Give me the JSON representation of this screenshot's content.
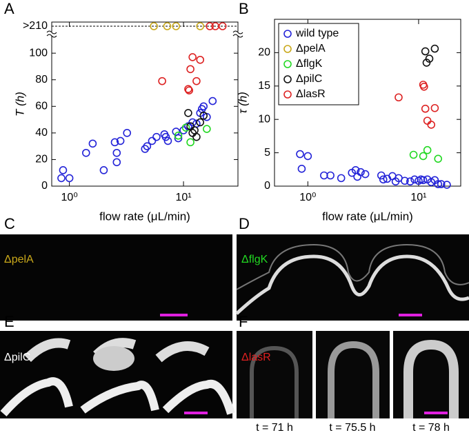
{
  "chart_data": [
    {
      "type": "scatter",
      "panel": "A",
      "xscale": "log",
      "xlabel": "flow rate (μL/min)",
      "ylabel": "T (h)",
      "xlim": [
        0.7,
        30
      ],
      "xticks": [
        {
          "value": 1,
          "label": "10⁰"
        },
        {
          "value": 10,
          "label": "10¹"
        }
      ],
      "ylim": [
        0,
        215
      ],
      "axis_break": [
        112,
        205
      ],
      "yticks": [
        0,
        20,
        40,
        60,
        80,
        100,
        {
          "value": 210,
          "label": ">210"
        }
      ],
      "series": [
        {
          "color": "#2323d8",
          "x": [
            0.85,
            0.88,
            1.0,
            1.4,
            1.6,
            2.0,
            2.5,
            2.6,
            2.6,
            2.8,
            3.2,
            4.6,
            4.8,
            5.3,
            5.8,
            6.8,
            7.0,
            7.3,
            8.6,
            9.0,
            10,
            11,
            12,
            13,
            14,
            14.5,
            16,
            18,
            15
          ],
          "values": [
            6,
            12,
            6,
            25,
            32,
            12,
            33,
            18,
            25,
            34,
            40,
            28,
            30,
            34,
            37,
            39,
            37,
            34,
            41,
            36,
            42,
            45,
            48,
            47,
            55,
            58,
            52,
            64,
            60
          ]
        },
        {
          "color": "#c9a81a",
          "x": [
            5.5,
            7.2,
            8.6,
            14
          ],
          "values": [
            210,
            210,
            210,
            210
          ]
        },
        {
          "color": "#22d822",
          "x": [
            9,
            10.5,
            11.5,
            16
          ],
          "values": [
            38,
            44,
            33,
            43
          ]
        },
        {
          "color": "#111111",
          "x": [
            11,
            11.5,
            12,
            12.5,
            13,
            14,
            15
          ],
          "values": [
            55,
            45,
            40,
            42,
            37,
            48,
            53
          ]
        },
        {
          "color": "#dd2222",
          "x": [
            6.5,
            11,
            11.2,
            11.5,
            12,
            13,
            14,
            17,
            19,
            22
          ],
          "values": [
            79,
            73,
            72,
            88,
            97,
            79,
            95,
            210,
            210,
            210
          ]
        }
      ]
    },
    {
      "type": "scatter",
      "panel": "B",
      "xscale": "log",
      "xlabel": "flow rate (μL/min)",
      "ylabel": "τ (h)",
      "xlim": [
        0.5,
        24
      ],
      "xticks": [
        {
          "value": 1,
          "label": "10⁰"
        },
        {
          "value": 10,
          "label": "10¹"
        }
      ],
      "ylim": [
        0,
        25
      ],
      "yticks": [
        0,
        5,
        10,
        15,
        20
      ],
      "legend": "upper left",
      "series": [
        {
          "name": "wild type",
          "color": "#2323d8",
          "x": [
            0.85,
            0.88,
            1.0,
            1.4,
            1.6,
            2.0,
            2.5,
            2.7,
            2.8,
            3.0,
            3.3,
            4.6,
            4.8,
            5.2,
            5.8,
            6.2,
            6.6,
            7.5,
            8.4,
            9.2,
            10,
            10.5,
            11,
            12,
            13,
            14,
            15,
            16,
            18
          ],
          "values": [
            4.8,
            2.6,
            4.5,
            1.6,
            1.6,
            1.2,
            2.0,
            2.4,
            1.4,
            2.1,
            1.8,
            1.6,
            1.0,
            1.1,
            1.5,
            0.7,
            1.2,
            0.8,
            0.7,
            1.0,
            0.8,
            1.0,
            0.9,
            1.0,
            0.6,
            0.9,
            0.3,
            0.3,
            0.2
          ]
        },
        {
          "name": "ΔpelA",
          "color": "#c9a81a",
          "x": [],
          "values": []
        },
        {
          "name": "ΔflgK",
          "color": "#22d822",
          "x": [
            9,
            11,
            12,
            15
          ],
          "values": [
            4.7,
            4.5,
            5.4,
            4.1
          ]
        },
        {
          "name": "ΔpilC",
          "color": "#111111",
          "x": [
            11.5,
            11.8,
            12.5,
            14
          ],
          "values": [
            20.2,
            18.5,
            19.1,
            20.6
          ]
        },
        {
          "name": "ΔlasR",
          "color": "#dd2222",
          "x": [
            6.6,
            11,
            11.2,
            11.5,
            12,
            13,
            14
          ],
          "values": [
            13.3,
            15.2,
            14.9,
            11.6,
            9.8,
            9.2,
            11.7
          ]
        }
      ]
    }
  ],
  "panels": [
    {
      "letter": "C",
      "label": "ΔpelA",
      "color": "#c9a81a"
    },
    {
      "letter": "D",
      "label": "ΔflgK",
      "color": "#22d822"
    },
    {
      "letter": "E",
      "label": "ΔpilC",
      "color": "#ffffff"
    },
    {
      "letter": "F",
      "label": "ΔlasR",
      "color": "#e02020",
      "times": [
        "t = 71 h",
        "t = 75.5 h",
        "t = 78 h"
      ]
    }
  ]
}
